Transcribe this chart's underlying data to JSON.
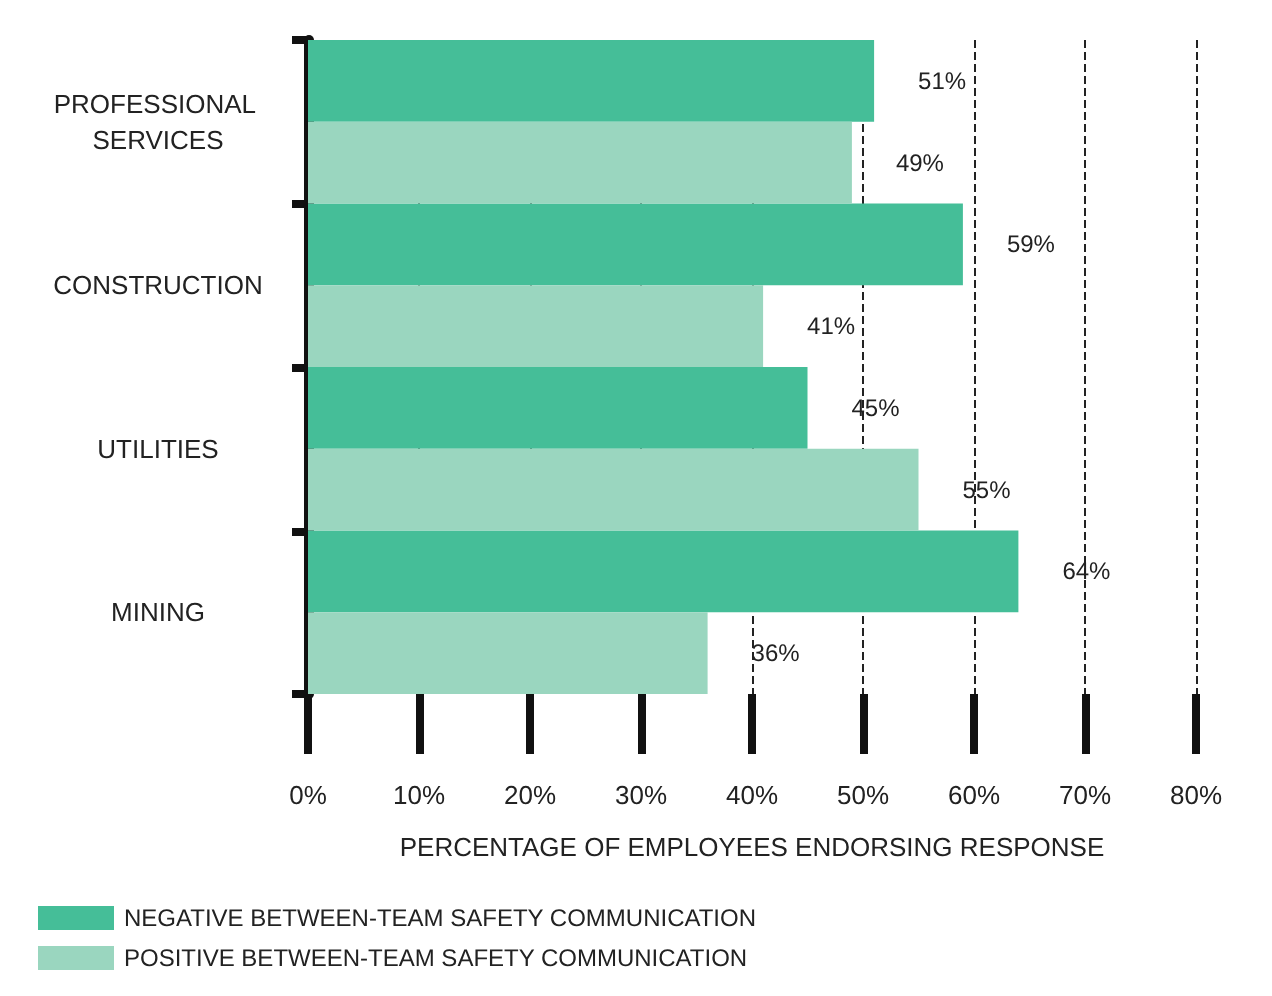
{
  "chart_data": {
    "type": "bar",
    "orientation": "horizontal",
    "xlabel": "PERCENTAGE OF EMPLOYEES ENDORSING RESPONSE",
    "categories": [
      "PROFESSIONAL SERVICES",
      "CONSTRUCTION",
      "UTILITIES",
      "MINING"
    ],
    "series": [
      {
        "name": "NEGATIVE BETWEEN-TEAM SAFETY COMMUNICATION",
        "color": "#45be98",
        "values": [
          51,
          59,
          45,
          64
        ],
        "value_labels": [
          "51%",
          "59%",
          "45%",
          "64%"
        ]
      },
      {
        "name": "POSITIVE BETWEEN-TEAM SAFETY COMMUNICATION",
        "color": "#9ad6bf",
        "values": [
          49,
          41,
          55,
          36
        ],
        "value_labels": [
          "49%",
          "41%",
          "55%",
          "36%"
        ]
      }
    ],
    "xlim": [
      0,
      80
    ],
    "xticks": [
      {
        "value": 0,
        "label": "0%"
      },
      {
        "value": 10,
        "label": "10%"
      },
      {
        "value": 20,
        "label": "20%"
      },
      {
        "value": 30,
        "label": "30%"
      },
      {
        "value": 40,
        "label": "40%"
      },
      {
        "value": 50,
        "label": "50%"
      },
      {
        "value": 60,
        "label": "60%"
      },
      {
        "value": 70,
        "label": "70%"
      },
      {
        "value": 80,
        "label": "80%"
      }
    ],
    "grid": "x",
    "legend": "bottom left"
  }
}
